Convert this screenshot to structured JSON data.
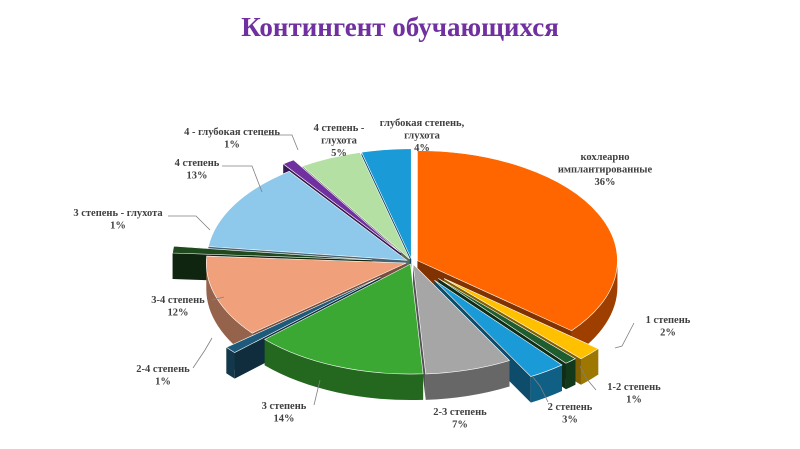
{
  "chart_data": {
    "type": "pie",
    "title": "Контингент обучающихся",
    "slices": [
      {
        "label": [
          "кохлеарно",
          "имплантированные"
        ],
        "value": 36,
        "pct": "36%",
        "color": "#ff6600"
      },
      {
        "label": [
          "1 степень"
        ],
        "value": 2,
        "pct": "2%",
        "color": "#ffc000"
      },
      {
        "label": [
          "1-2 степень"
        ],
        "value": 1,
        "pct": "1%",
        "color": "#1f5c2e"
      },
      {
        "label": [
          "2 степень"
        ],
        "value": 3,
        "pct": "3%",
        "color": "#1a9ad6"
      },
      {
        "label": [
          "2-3 степень"
        ],
        "value": 7,
        "pct": "7%",
        "color": "#a6a6a6"
      },
      {
        "label": [
          "3 степень"
        ],
        "value": 14,
        "pct": "14%",
        "color": "#3aa832"
      },
      {
        "label": [
          "2-4 степень"
        ],
        "value": 1,
        "pct": "1%",
        "color": "#1e5a7a"
      },
      {
        "label": [
          "3-4 степень"
        ],
        "value": 12,
        "pct": "12%",
        "color": "#f0a07a"
      },
      {
        "label": [
          "3 степень - глухота"
        ],
        "value": 1,
        "pct": "1%",
        "color": "#1e4a1e"
      },
      {
        "label": [
          "4 степень"
        ],
        "value": 13,
        "pct": "13%",
        "color": "#8ec8ea"
      },
      {
        "label": [
          "4 - глубокая степень"
        ],
        "value": 1,
        "pct": "1%",
        "color": "#7030a0"
      },
      {
        "label": [
          "4 степень -",
          "глухота"
        ],
        "value": 5,
        "pct": "5%",
        "color": "#b4e0a4"
      },
      {
        "label": [
          "глубокая степень,",
          "глухота"
        ],
        "value": 4,
        "pct": "4%",
        "color": "#1a9ad6"
      }
    ]
  }
}
